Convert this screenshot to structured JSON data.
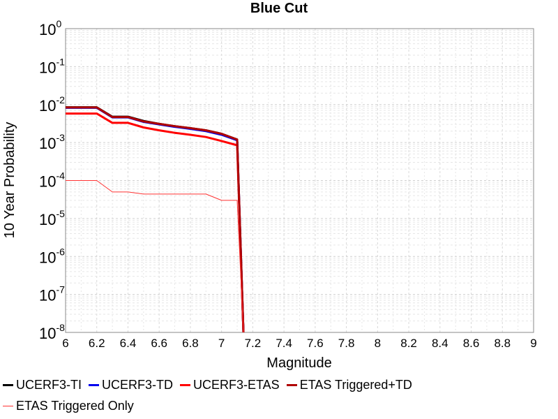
{
  "chart_data": {
    "type": "line",
    "title": "Blue Cut",
    "xlabel": "Magnitude",
    "ylabel": "10 Year Probability",
    "xlim": [
      6,
      9
    ],
    "ylim_exponents": [
      -8,
      0
    ],
    "y_scale": "log",
    "grid": true,
    "legend_position": "bottom",
    "x_ticks": [
      "6",
      "6.2",
      "6.4",
      "6.6",
      "6.8",
      "7",
      "7.2",
      "7.4",
      "7.6",
      "7.8",
      "8",
      "8.2",
      "8.4",
      "8.6",
      "8.8",
      "9"
    ],
    "y_tick_base": "10",
    "y_tick_exponents": [
      "0",
      "-1",
      "-2",
      "-3",
      "-4",
      "-5",
      "-6",
      "-7",
      "-8"
    ],
    "series": [
      {
        "name": "UCERF3-TI",
        "color": "#000000",
        "width": 3,
        "x": [
          6.0,
          6.2,
          6.3,
          6.4,
          6.5,
          6.6,
          6.7,
          6.8,
          6.9,
          7.0,
          7.1,
          7.14
        ],
        "y": [
          0.0085,
          0.0085,
          0.0048,
          0.0048,
          0.0037,
          0.0031,
          0.0027,
          0.0024,
          0.0021,
          0.0017,
          0.0012,
          1e-09
        ]
      },
      {
        "name": "UCERF3-TD",
        "color": "#0000ee",
        "width": 3,
        "x": [
          6.0,
          6.2,
          6.3,
          6.4,
          6.5,
          6.6,
          6.7,
          6.8,
          6.9,
          7.0,
          7.1,
          7.14
        ],
        "y": [
          0.0082,
          0.0082,
          0.0046,
          0.0046,
          0.0035,
          0.003,
          0.0026,
          0.0023,
          0.002,
          0.0016,
          0.00115,
          1e-09
        ]
      },
      {
        "name": "UCERF3-ETAS",
        "color": "#ff0000",
        "width": 3,
        "x": [
          6.0,
          6.2,
          6.3,
          6.4,
          6.5,
          6.6,
          6.7,
          6.8,
          6.9,
          7.0,
          7.1,
          7.14
        ],
        "y": [
          0.0058,
          0.0058,
          0.0033,
          0.0033,
          0.0025,
          0.0021,
          0.0018,
          0.0016,
          0.0014,
          0.0011,
          0.00085,
          1e-09
        ]
      },
      {
        "name": "ETAS Triggered+TD",
        "color": "#b00000",
        "width": 3,
        "x": [
          6.0,
          6.2,
          6.3,
          6.4,
          6.5,
          6.6,
          6.7,
          6.8,
          6.9,
          7.0,
          7.1,
          7.14
        ],
        "y": [
          0.0084,
          0.0084,
          0.0047,
          0.0047,
          0.0036,
          0.0031,
          0.0027,
          0.0024,
          0.0021,
          0.0017,
          0.0012,
          1e-09
        ]
      },
      {
        "name": "ETAS Triggered Only",
        "color": "#ff3333",
        "width": 1,
        "x": [
          6.0,
          6.2,
          6.3,
          6.4,
          6.5,
          6.6,
          6.7,
          6.8,
          6.9,
          7.0,
          7.1,
          7.14
        ],
        "y": [
          0.0001,
          0.0001,
          5e-05,
          5e-05,
          4.4e-05,
          4.4e-05,
          4.4e-05,
          4.4e-05,
          4.4e-05,
          3e-05,
          3e-05,
          1e-09
        ]
      }
    ]
  }
}
